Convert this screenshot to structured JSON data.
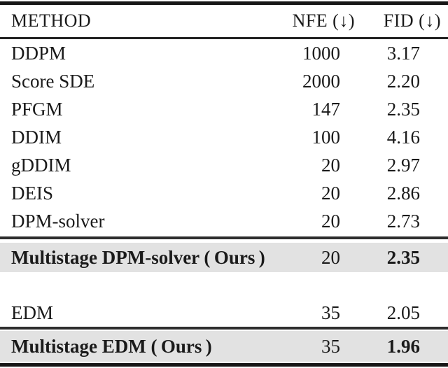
{
  "table": {
    "headers": {
      "method": "METHOD",
      "nfe": "NFE (↓)",
      "fid": "FID (↓)"
    },
    "highlight_color": "#e2e2e2",
    "rows": [
      {
        "method": "DDPM",
        "nfe": "1000",
        "fid": "3.17",
        "highlight": false
      },
      {
        "method": "Score SDE",
        "nfe": "2000",
        "fid": "2.20",
        "highlight": false
      },
      {
        "method": "PFGM",
        "nfe": "147",
        "fid": "2.35",
        "highlight": false
      },
      {
        "method": "DDIM",
        "nfe": "100",
        "fid": "4.16",
        "highlight": false
      },
      {
        "method": "gDDIM",
        "nfe": "20",
        "fid": "2.97",
        "highlight": false
      },
      {
        "method": "DEIS",
        "nfe": "20",
        "fid": "2.86",
        "highlight": false
      },
      {
        "method": "DPM-solver",
        "nfe": "20",
        "fid": "2.73",
        "highlight": false
      },
      {
        "method": "Multistage DPM-solver ( Ours )",
        "nfe": "20",
        "fid": "2.35",
        "highlight": true
      },
      {
        "method": "EDM",
        "nfe": "35",
        "fid": "2.05",
        "highlight": false
      },
      {
        "method": "Multistage EDM ( Ours )",
        "nfe": "35",
        "fid": "1.96",
        "highlight": true
      }
    ]
  }
}
